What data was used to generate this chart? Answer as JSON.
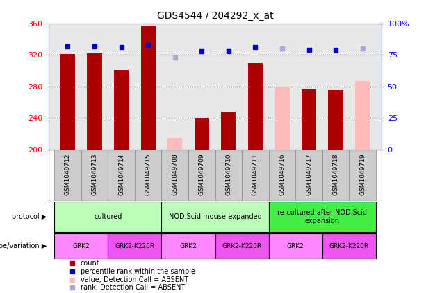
{
  "title": "GDS4544 / 204292_x_at",
  "samples": [
    "GSM1049712",
    "GSM1049713",
    "GSM1049714",
    "GSM1049715",
    "GSM1049708",
    "GSM1049709",
    "GSM1049710",
    "GSM1049711",
    "GSM1049716",
    "GSM1049717",
    "GSM1049718",
    "GSM1049719"
  ],
  "counts": [
    321,
    322,
    301,
    356,
    215,
    239,
    248,
    310,
    280,
    276,
    275,
    287
  ],
  "ranks": [
    82,
    82,
    81,
    83,
    73,
    78,
    78,
    81,
    80,
    79,
    79,
    80
  ],
  "absent": [
    false,
    false,
    false,
    false,
    true,
    false,
    false,
    false,
    true,
    false,
    false,
    true
  ],
  "ylim_left": [
    200,
    360
  ],
  "ylim_right": [
    0,
    100
  ],
  "yticks_left": [
    200,
    240,
    280,
    320,
    360
  ],
  "yticks_right": [
    0,
    25,
    50,
    75,
    100
  ],
  "bar_color_present": "#aa0000",
  "bar_color_absent": "#ffbbbb",
  "rank_color_present": "#0000cc",
  "rank_color_absent": "#aaaadd",
  "bg_color": "#e8e8e8",
  "plot_border_color": "#000000",
  "grid_color": "#000000",
  "tick_area_bg": "#cccccc",
  "protocol_groups": [
    {
      "label": "cultured",
      "start": 0,
      "end": 4,
      "color": "#bbffbb"
    },
    {
      "label": "NOD.Scid mouse-expanded",
      "start": 4,
      "end": 8,
      "color": "#bbffbb"
    },
    {
      "label": "re-cultured after NOD.Scid\nexpansion",
      "start": 8,
      "end": 12,
      "color": "#44ee44"
    }
  ],
  "genotype_groups": [
    {
      "label": "GRK2",
      "start": 0,
      "end": 2,
      "color": "#ff88ff"
    },
    {
      "label": "GRK2-K220R",
      "start": 2,
      "end": 4,
      "color": "#ee55ee"
    },
    {
      "label": "GRK2",
      "start": 4,
      "end": 6,
      "color": "#ff88ff"
    },
    {
      "label": "GRK2-K220R",
      "start": 6,
      "end": 8,
      "color": "#ee55ee"
    },
    {
      "label": "GRK2",
      "start": 8,
      "end": 10,
      "color": "#ff88ff"
    },
    {
      "label": "GRK2-K220R",
      "start": 10,
      "end": 12,
      "color": "#ee55ee"
    }
  ],
  "legend_items": [
    {
      "label": "count",
      "color": "#aa0000"
    },
    {
      "label": "percentile rank within the sample",
      "color": "#0000cc"
    },
    {
      "label": "value, Detection Call = ABSENT",
      "color": "#ffbbbb"
    },
    {
      "label": "rank, Detection Call = ABSENT",
      "color": "#aaaadd"
    }
  ]
}
